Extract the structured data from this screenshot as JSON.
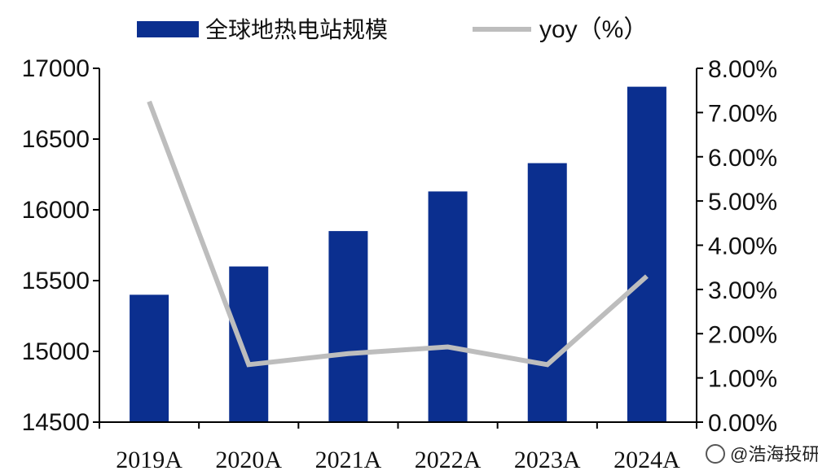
{
  "chart_data": {
    "type": "bar",
    "categories": [
      "2019A",
      "2020A",
      "2021A",
      "2022A",
      "2023A",
      "2024A"
    ],
    "series": [
      {
        "name": "全球地热电站规模",
        "type": "bar",
        "axis": "left",
        "color": "#0b2f8f",
        "values": [
          15400,
          15600,
          15850,
          16130,
          16330,
          16870
        ]
      },
      {
        "name": "yoy（%）",
        "type": "line",
        "axis": "right",
        "color": "#bdbdbd",
        "values": [
          7.25,
          1.3,
          1.55,
          1.7,
          1.3,
          3.3
        ]
      }
    ],
    "left_axis": {
      "min": 14500,
      "max": 17000,
      "ticks": [
        "14500",
        "15000",
        "15500",
        "16000",
        "16500",
        "17000"
      ]
    },
    "right_axis": {
      "min": 0,
      "max": 8,
      "ticks": [
        "0.00%",
        "1.00%",
        "2.00%",
        "3.00%",
        "4.00%",
        "5.00%",
        "6.00%",
        "7.00%",
        "8.00%"
      ]
    },
    "legend_position": "top",
    "grid": false
  },
  "watermark": {
    "text": "@浩海投研"
  }
}
